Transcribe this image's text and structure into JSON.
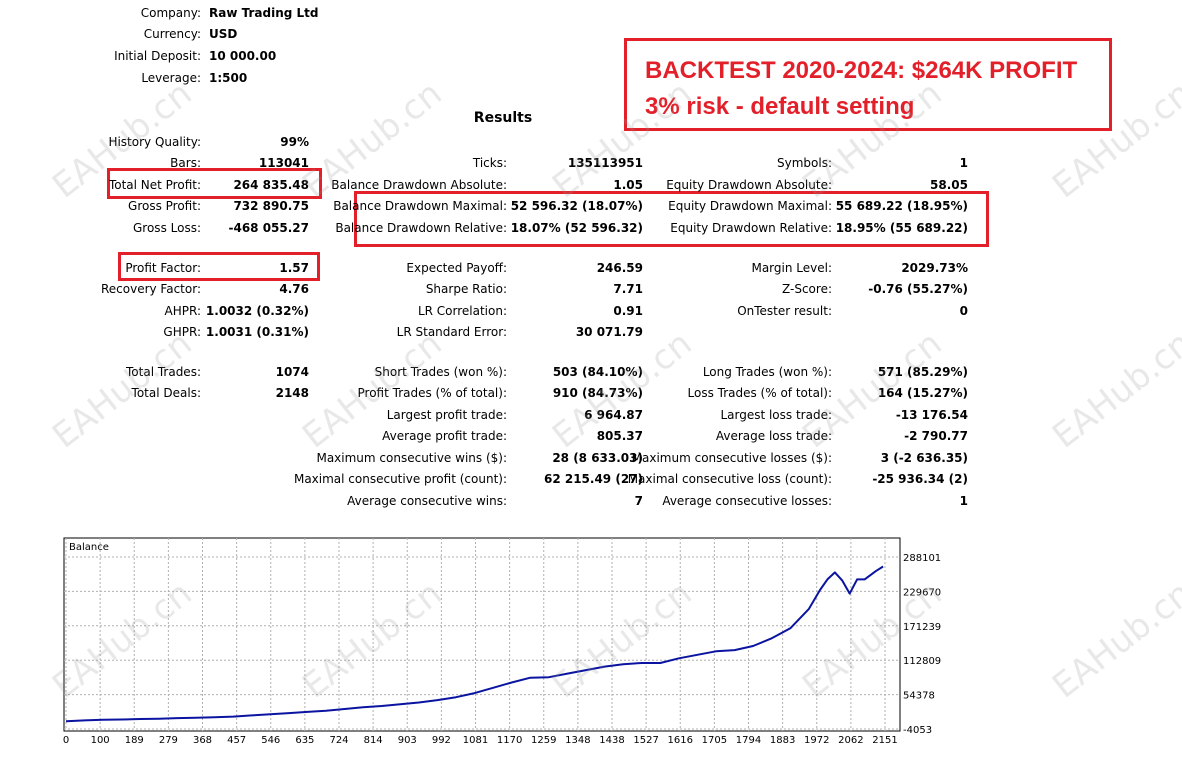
{
  "header": {
    "company_label": "Company:",
    "company": "Raw Trading Ltd",
    "currency_label": "Currency:",
    "currency": "USD",
    "deposit_label": "Initial Deposit:",
    "deposit": "10 000.00",
    "leverage_label": "Leverage:",
    "leverage": "1:500"
  },
  "banner": {
    "line1": "BACKTEST 2020-2024: $264K  PROFIT",
    "line2": "3% risk - default setting"
  },
  "results_title": "Results",
  "stats": {
    "history_quality_label": "History Quality:",
    "history_quality": "99%",
    "bars_label": "Bars:",
    "bars": "113041",
    "ticks_label": "Ticks:",
    "ticks": "135113951",
    "symbols_label": "Symbols:",
    "symbols": "1",
    "net_profit_label": "Total Net Profit:",
    "net_profit": "264 835.48",
    "bal_dd_abs_label": "Balance Drawdown Absolute:",
    "bal_dd_abs": "1.05",
    "eq_dd_abs_label": "Equity Drawdown Absolute:",
    "eq_dd_abs": "58.05",
    "gross_profit_label": "Gross Profit:",
    "gross_profit": "732 890.75",
    "bal_dd_max_label": "Balance Drawdown Maximal:",
    "bal_dd_max": "52 596.32 (18.07%)",
    "eq_dd_max_label": "Equity Drawdown Maximal:",
    "eq_dd_max": "55 689.22 (18.95%)",
    "gross_loss_label": "Gross Loss:",
    "gross_loss": "-468 055.27",
    "bal_dd_rel_label": "Balance Drawdown Relative:",
    "bal_dd_rel": "18.07% (52 596.32)",
    "eq_dd_rel_label": "Equity Drawdown Relative:",
    "eq_dd_rel": "18.95% (55 689.22)",
    "profit_factor_label": "Profit Factor:",
    "profit_factor": "1.57",
    "expected_payoff_label": "Expected Payoff:",
    "expected_payoff": "246.59",
    "margin_level_label": "Margin Level:",
    "margin_level": "2029.73%",
    "recovery_factor_label": "Recovery Factor:",
    "recovery_factor": "4.76",
    "sharpe_label": "Sharpe Ratio:",
    "sharpe": "7.71",
    "zscore_label": "Z-Score:",
    "zscore": "-0.76 (55.27%)",
    "ahpr_label": "AHPR:",
    "ahpr": "1.0032 (0.32%)",
    "lr_corr_label": "LR Correlation:",
    "lr_corr": "0.91",
    "ontester_label": "OnTester result:",
    "ontester": "0",
    "ghpr_label": "GHPR:",
    "ghpr": "1.0031 (0.31%)",
    "lr_se_label": "LR Standard Error:",
    "lr_se": "30 071.79",
    "total_trades_label": "Total Trades:",
    "total_trades": "1074",
    "short_trades_label": "Short Trades (won %):",
    "short_trades": "503 (84.10%)",
    "long_trades_label": "Long Trades (won %):",
    "long_trades": "571 (85.29%)",
    "total_deals_label": "Total Deals:",
    "total_deals": "2148",
    "profit_trades_label": "Profit Trades (% of total):",
    "profit_trades": "910 (84.73%)",
    "loss_trades_label": "Loss Trades (% of total):",
    "loss_trades": "164 (15.27%)",
    "largest_profit_label": "Largest profit trade:",
    "largest_profit": "6 964.87",
    "largest_loss_label": "Largest loss trade:",
    "largest_loss": "-13 176.54",
    "avg_profit_label": "Average profit trade:",
    "avg_profit": "805.37",
    "avg_loss_label": "Average loss trade:",
    "avg_loss": "-2 790.77",
    "max_cons_wins_label": "Maximum consecutive wins ($):",
    "max_cons_wins": "28 (8 633.03)",
    "max_cons_losses_label": "Maximum consecutive losses ($):",
    "max_cons_losses": "3 (-2 636.35)",
    "maximal_cons_profit_label": "Maximal consecutive profit (count):",
    "maximal_cons_profit": "62 215.49 (27)",
    "maximal_cons_loss_label": "Maximal consecutive loss (count):",
    "maximal_cons_loss": "-25 936.34 (2)",
    "avg_cons_wins_label": "Average consecutive wins:",
    "avg_cons_wins": "7",
    "avg_cons_losses_label": "Average consecutive losses:",
    "avg_cons_losses": "1"
  },
  "watermark": "EAHub.cn",
  "colors": {
    "highlight": "#e3202a",
    "balance_line": "#0a14a0"
  },
  "chart_data": {
    "type": "line",
    "title": "Balance",
    "x_ticks": [
      "0",
      "100",
      "189",
      "279",
      "368",
      "457",
      "546",
      "635",
      "724",
      "814",
      "903",
      "992",
      "1081",
      "1170",
      "1259",
      "1348",
      "1438",
      "1527",
      "1616",
      "1705",
      "1794",
      "1883",
      "1972",
      "2062",
      "2151"
    ],
    "y_ticks": [
      "288101",
      "229670",
      "171239",
      "112809",
      "54378",
      "-4053"
    ],
    "ylim": [
      -4053,
      288101
    ],
    "xlim": [
      0,
      2240
    ],
    "grid": true,
    "series": [
      {
        "x": [
          0,
          50,
          100,
          150,
          200,
          250,
          300,
          350,
          400,
          450,
          500,
          550,
          600,
          650,
          700,
          750,
          800,
          850,
          900,
          950,
          1000,
          1050,
          1100,
          1150,
          1200,
          1250,
          1300,
          1350,
          1400,
          1450,
          1500,
          1550,
          1600,
          1650,
          1700,
          1750,
          1800,
          1850,
          1900,
          1950,
          2000,
          2030,
          2050,
          2070,
          2090,
          2110,
          2130,
          2150,
          2180,
          2200
        ],
        "y": [
          9000,
          10500,
          11500,
          12000,
          13000,
          13500,
          14500,
          15000,
          16000,
          17000,
          19000,
          21000,
          23000,
          25000,
          27000,
          30000,
          33000,
          35000,
          38000,
          41000,
          45000,
          50000,
          57000,
          66000,
          75000,
          83000,
          84000,
          90000,
          96000,
          102000,
          106000,
          108000,
          108000,
          116000,
          122000,
          128000,
          130000,
          137000,
          150000,
          167000,
          200000,
          232000,
          250000,
          262000,
          248000,
          226000,
          250000,
          250000,
          264000,
          272000
        ]
      }
    ]
  }
}
